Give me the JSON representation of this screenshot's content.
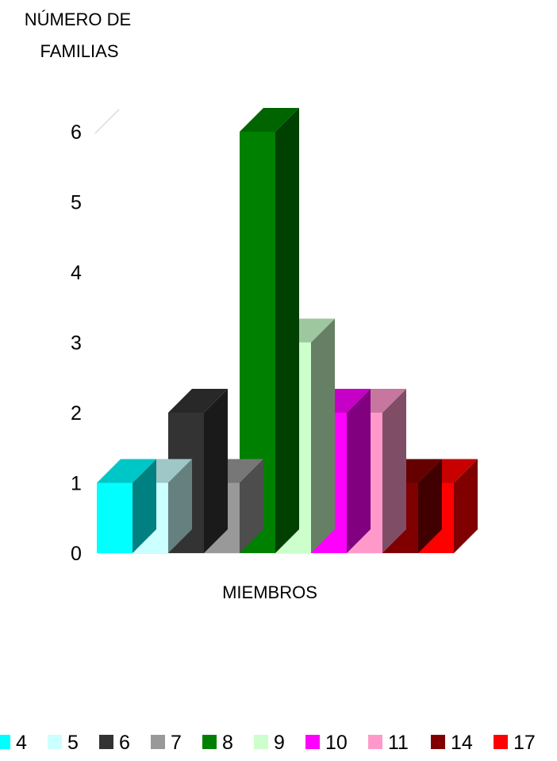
{
  "chart_data": {
    "type": "bar",
    "ylabel_lines": [
      "NÚMERO DE",
      "FAMILIAS"
    ],
    "xlabel": "MIEMBROS",
    "ylim": [
      0,
      6
    ],
    "yticks": [
      0,
      1,
      2,
      3,
      4,
      5,
      6
    ],
    "categories": [
      "4",
      "5",
      "6",
      "7",
      "8",
      "9",
      "10",
      "11",
      "14",
      "17"
    ],
    "values": [
      1,
      1,
      2,
      1,
      6,
      3,
      2,
      2,
      1,
      1
    ],
    "colors": [
      "#00ffff",
      "#ccffff",
      "#333333",
      "#999999",
      "#008000",
      "#ccffcc",
      "#ff00ff",
      "#ff99cc",
      "#800000",
      "#ff0000"
    ],
    "legend_position": "bottom",
    "grid": false
  }
}
